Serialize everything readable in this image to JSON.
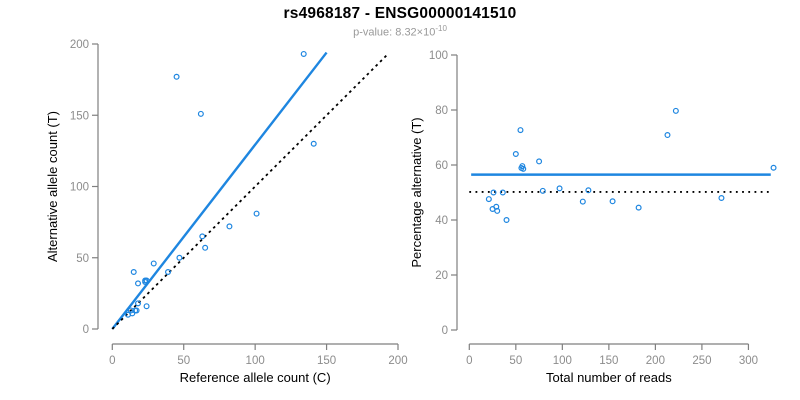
{
  "header": {
    "title": "rs4968187 - ENSG00000141510",
    "subtitle_prefix": "p-value: 8.32×10",
    "subtitle_exponent": "-10"
  },
  "colors": {
    "accent_blue": "#1e86e0",
    "line_black": "#000000",
    "axis_gray": "#7f7f7f",
    "tick_label_gray": "#8c8c8c",
    "axis_title_black": "#000000",
    "background": "#ffffff"
  },
  "chart_data": [
    {
      "type": "scatter",
      "panel": "allele-counts",
      "title": "",
      "xlabel": "Reference allele count (C)",
      "ylabel": "Alternative allele count (T)",
      "xlim": [
        0,
        200
      ],
      "ylim": [
        0,
        200
      ],
      "xticks": [
        0,
        50,
        100,
        150,
        200
      ],
      "yticks": [
        0,
        50,
        100,
        150,
        200
      ],
      "grid": false,
      "legend": false,
      "points": [
        [
          45,
          177
        ],
        [
          62,
          151
        ],
        [
          134,
          193
        ],
        [
          141,
          130
        ],
        [
          101,
          81
        ],
        [
          82,
          72
        ],
        [
          63,
          65
        ],
        [
          65,
          57
        ],
        [
          47,
          50
        ],
        [
          39,
          40
        ],
        [
          29,
          46
        ],
        [
          15,
          40
        ],
        [
          18,
          32
        ],
        [
          23,
          33
        ],
        [
          23,
          34
        ],
        [
          24,
          34
        ],
        [
          13,
          13
        ],
        [
          18,
          18
        ],
        [
          11,
          10
        ],
        [
          14,
          11
        ],
        [
          16,
          13
        ],
        [
          17,
          13
        ],
        [
          24,
          16
        ]
      ],
      "lines": [
        {
          "label": "regression-fit",
          "style": "solid",
          "color": "accent_blue",
          "from": [
            0,
            0
          ],
          "to": [
            150,
            194
          ]
        },
        {
          "label": "identity-line",
          "style": "dashed",
          "color": "line_black",
          "from": [
            0,
            0
          ],
          "to": [
            193,
            193
          ]
        }
      ]
    },
    {
      "type": "scatter",
      "panel": "percentage-alternative",
      "title": "",
      "xlabel": "Total number of reads",
      "ylabel": "Percentage alternative (T)",
      "xlim": [
        0,
        335
      ],
      "ylim": [
        0,
        100
      ],
      "xticks": [
        0,
        50,
        100,
        150,
        200,
        250,
        300
      ],
      "yticks": [
        0,
        20,
        40,
        60,
        80,
        100
      ],
      "grid": false,
      "legend": false,
      "points": [
        [
          222,
          79.7
        ],
        [
          213,
          70.9
        ],
        [
          327,
          59
        ],
        [
          271,
          48
        ],
        [
          182,
          44.5
        ],
        [
          154,
          46.8
        ],
        [
          128,
          50.8
        ],
        [
          122,
          46.7
        ],
        [
          97,
          51.5
        ],
        [
          79,
          50.6
        ],
        [
          75,
          61.3
        ],
        [
          55,
          72.7
        ],
        [
          50,
          64
        ],
        [
          56,
          58.9
        ],
        [
          57,
          59.6
        ],
        [
          58,
          58.6
        ],
        [
          26,
          50
        ],
        [
          36,
          50
        ],
        [
          21,
          47.6
        ],
        [
          25,
          44
        ],
        [
          29,
          44.8
        ],
        [
          30,
          43.3
        ],
        [
          40,
          40
        ]
      ],
      "lines": [
        {
          "label": "mean-percentage",
          "style": "solid",
          "color": "accent_blue",
          "from": [
            2,
            56.5
          ],
          "to": [
            324,
            56.5
          ]
        },
        {
          "label": "fifty-percent-line",
          "style": "dotted",
          "color": "line_black",
          "from": [
            0,
            50.2
          ],
          "to": [
            322,
            50.2
          ]
        }
      ]
    }
  ]
}
